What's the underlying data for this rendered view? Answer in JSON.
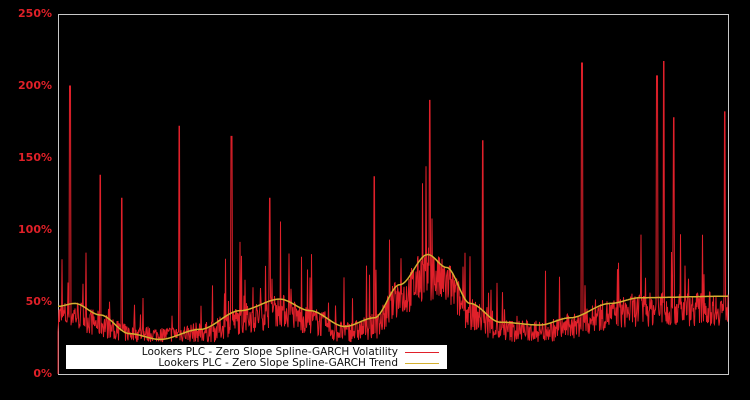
{
  "chart_data": {
    "type": "line",
    "title": "",
    "xlabel": "",
    "ylabel": "",
    "ylim": [
      0,
      250
    ],
    "y_ticks": [
      "0%",
      "50%",
      "100%",
      "150%",
      "200%",
      "250%"
    ],
    "y_tick_values": [
      0,
      50,
      100,
      150,
      200,
      250
    ],
    "grid": false,
    "legend_position": "lower-left, inside plot",
    "legend": [
      {
        "label": "Lookers PLC - Zero Slope Spline-GARCH Volatility",
        "color": "#e0202a"
      },
      {
        "label": "Lookers PLC - Zero Slope Spline-GARCH Trend",
        "color": "#d4b030"
      }
    ],
    "series": [
      {
        "name": "Lookers PLC - Zero Slope Spline-GARCH Trend",
        "color": "#d4b030",
        "x_frac": [
          0.0,
          0.025,
          0.063,
          0.107,
          0.152,
          0.212,
          0.272,
          0.331,
          0.376,
          0.428,
          0.472,
          0.51,
          0.552,
          0.58,
          0.615,
          0.66,
          0.719,
          0.764,
          0.824,
          0.869,
          1.0
        ],
        "values": [
          47,
          49,
          41,
          28,
          24,
          31,
          44,
          52,
          44,
          33,
          39,
          62,
          83,
          74,
          49,
          36,
          34,
          39,
          49,
          53,
          54
        ]
      },
      {
        "name": "Lookers PLC - Zero Slope Spline-GARCH Volatility",
        "color": "#e0202a",
        "notable_peaks": [
          {
            "x_frac": 0.018,
            "value": 200
          },
          {
            "x_frac": 0.063,
            "value": 138
          },
          {
            "x_frac": 0.095,
            "value": 122
          },
          {
            "x_frac": 0.181,
            "value": 172
          },
          {
            "x_frac": 0.259,
            "value": 165
          },
          {
            "x_frac": 0.316,
            "value": 122
          },
          {
            "x_frac": 0.472,
            "value": 137
          },
          {
            "x_frac": 0.555,
            "value": 190
          },
          {
            "x_frac": 0.634,
            "value": 162
          },
          {
            "x_frac": 0.782,
            "value": 216
          },
          {
            "x_frac": 0.894,
            "value": 207
          },
          {
            "x_frac": 0.904,
            "value": 217
          },
          {
            "x_frac": 0.919,
            "value": 178
          },
          {
            "x_frac": 0.995,
            "value": 182
          }
        ],
        "baseline_floor_approx": 22
      }
    ]
  }
}
